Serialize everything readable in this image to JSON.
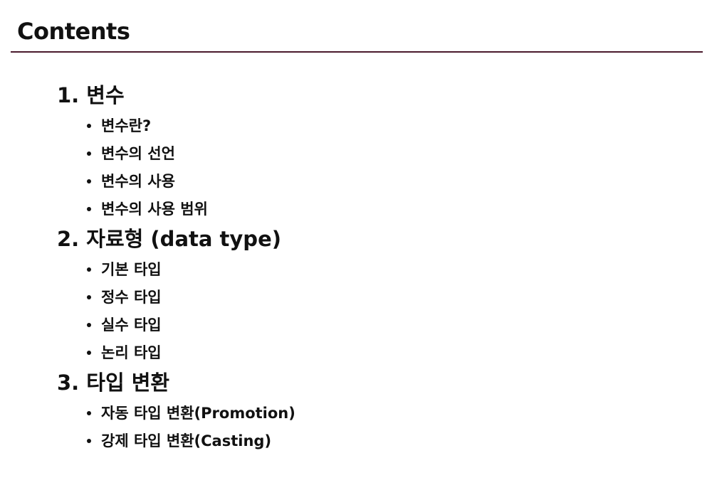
{
  "slide": {
    "title": "Contents",
    "sections": [
      {
        "heading": "1. 변수",
        "items": [
          "변수란?",
          "변수의 선언",
          "변수의 사용",
          "변수의 사용 범위"
        ]
      },
      {
        "heading": "2. 자료형 (data type)",
        "items": [
          "기본 타입",
          "정수 타입",
          "실수 타입",
          "논리 타입"
        ]
      },
      {
        "heading": "3. 타입 변환",
        "items": [
          "자동 타입 변환(Promotion)",
          "강제 타입 변환(Casting)"
        ]
      }
    ]
  },
  "colors": {
    "rule": "#4a1a2c",
    "text": "#111111",
    "background": "#ffffff"
  }
}
